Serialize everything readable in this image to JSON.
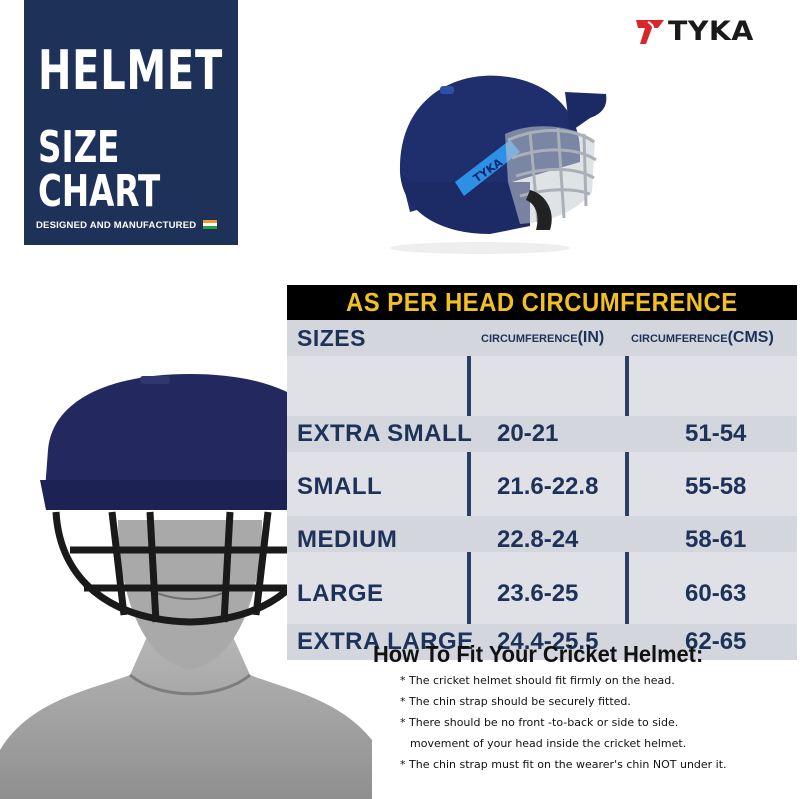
{
  "title": {
    "main": "HELMET",
    "sub": "SIZE CHART",
    "tagline": "DESIGNED AND MANUFACTURED"
  },
  "brand": {
    "name": "TYKA"
  },
  "colors": {
    "navy": "#1e3259",
    "gold": "#f3c022",
    "table_bg": "#dfe1e6"
  },
  "table": {
    "heading": "AS PER HEAD CIRCUMFERENCE",
    "columns": {
      "size": "SIZES",
      "inch_prefix": "CIRCUMFERENCE",
      "inch_unit": "(IN)",
      "cm_prefix": "CIRCUMFERENCE",
      "cm_unit": "(CMS)"
    },
    "rows": [
      {
        "size": "EXTRA SMALL",
        "inch": "20-21",
        "cm": "51-54"
      },
      {
        "size": "SMALL",
        "inch": "21.6-22.8",
        "cm": "55-58"
      },
      {
        "size": "MEDIUM",
        "inch": "22.8-24",
        "cm": "58-61"
      },
      {
        "size": "LARGE",
        "inch": "23.6-25",
        "cm": "60-63"
      },
      {
        "size": "EXTRA LARGE",
        "inch": "24.4-25.5",
        "cm": "62-65"
      }
    ]
  },
  "fit": {
    "title": "How To Fit Your Cricket Helmet:",
    "items": [
      "* The cricket helmet should fit firmly on the head.",
      "* The chin strap should be securely fitted.",
      "* There should be no front -to-back or side to side.",
      "movement of your head inside the cricket helmet.",
      "* The chin strap must fit on the wearer's chin NOT under it."
    ]
  },
  "icons": {
    "flag": "india-flag-icon",
    "logo": "tyka-logo-icon",
    "helmet": "cricket-helmet-icon",
    "model": "helmet-model-icon"
  }
}
